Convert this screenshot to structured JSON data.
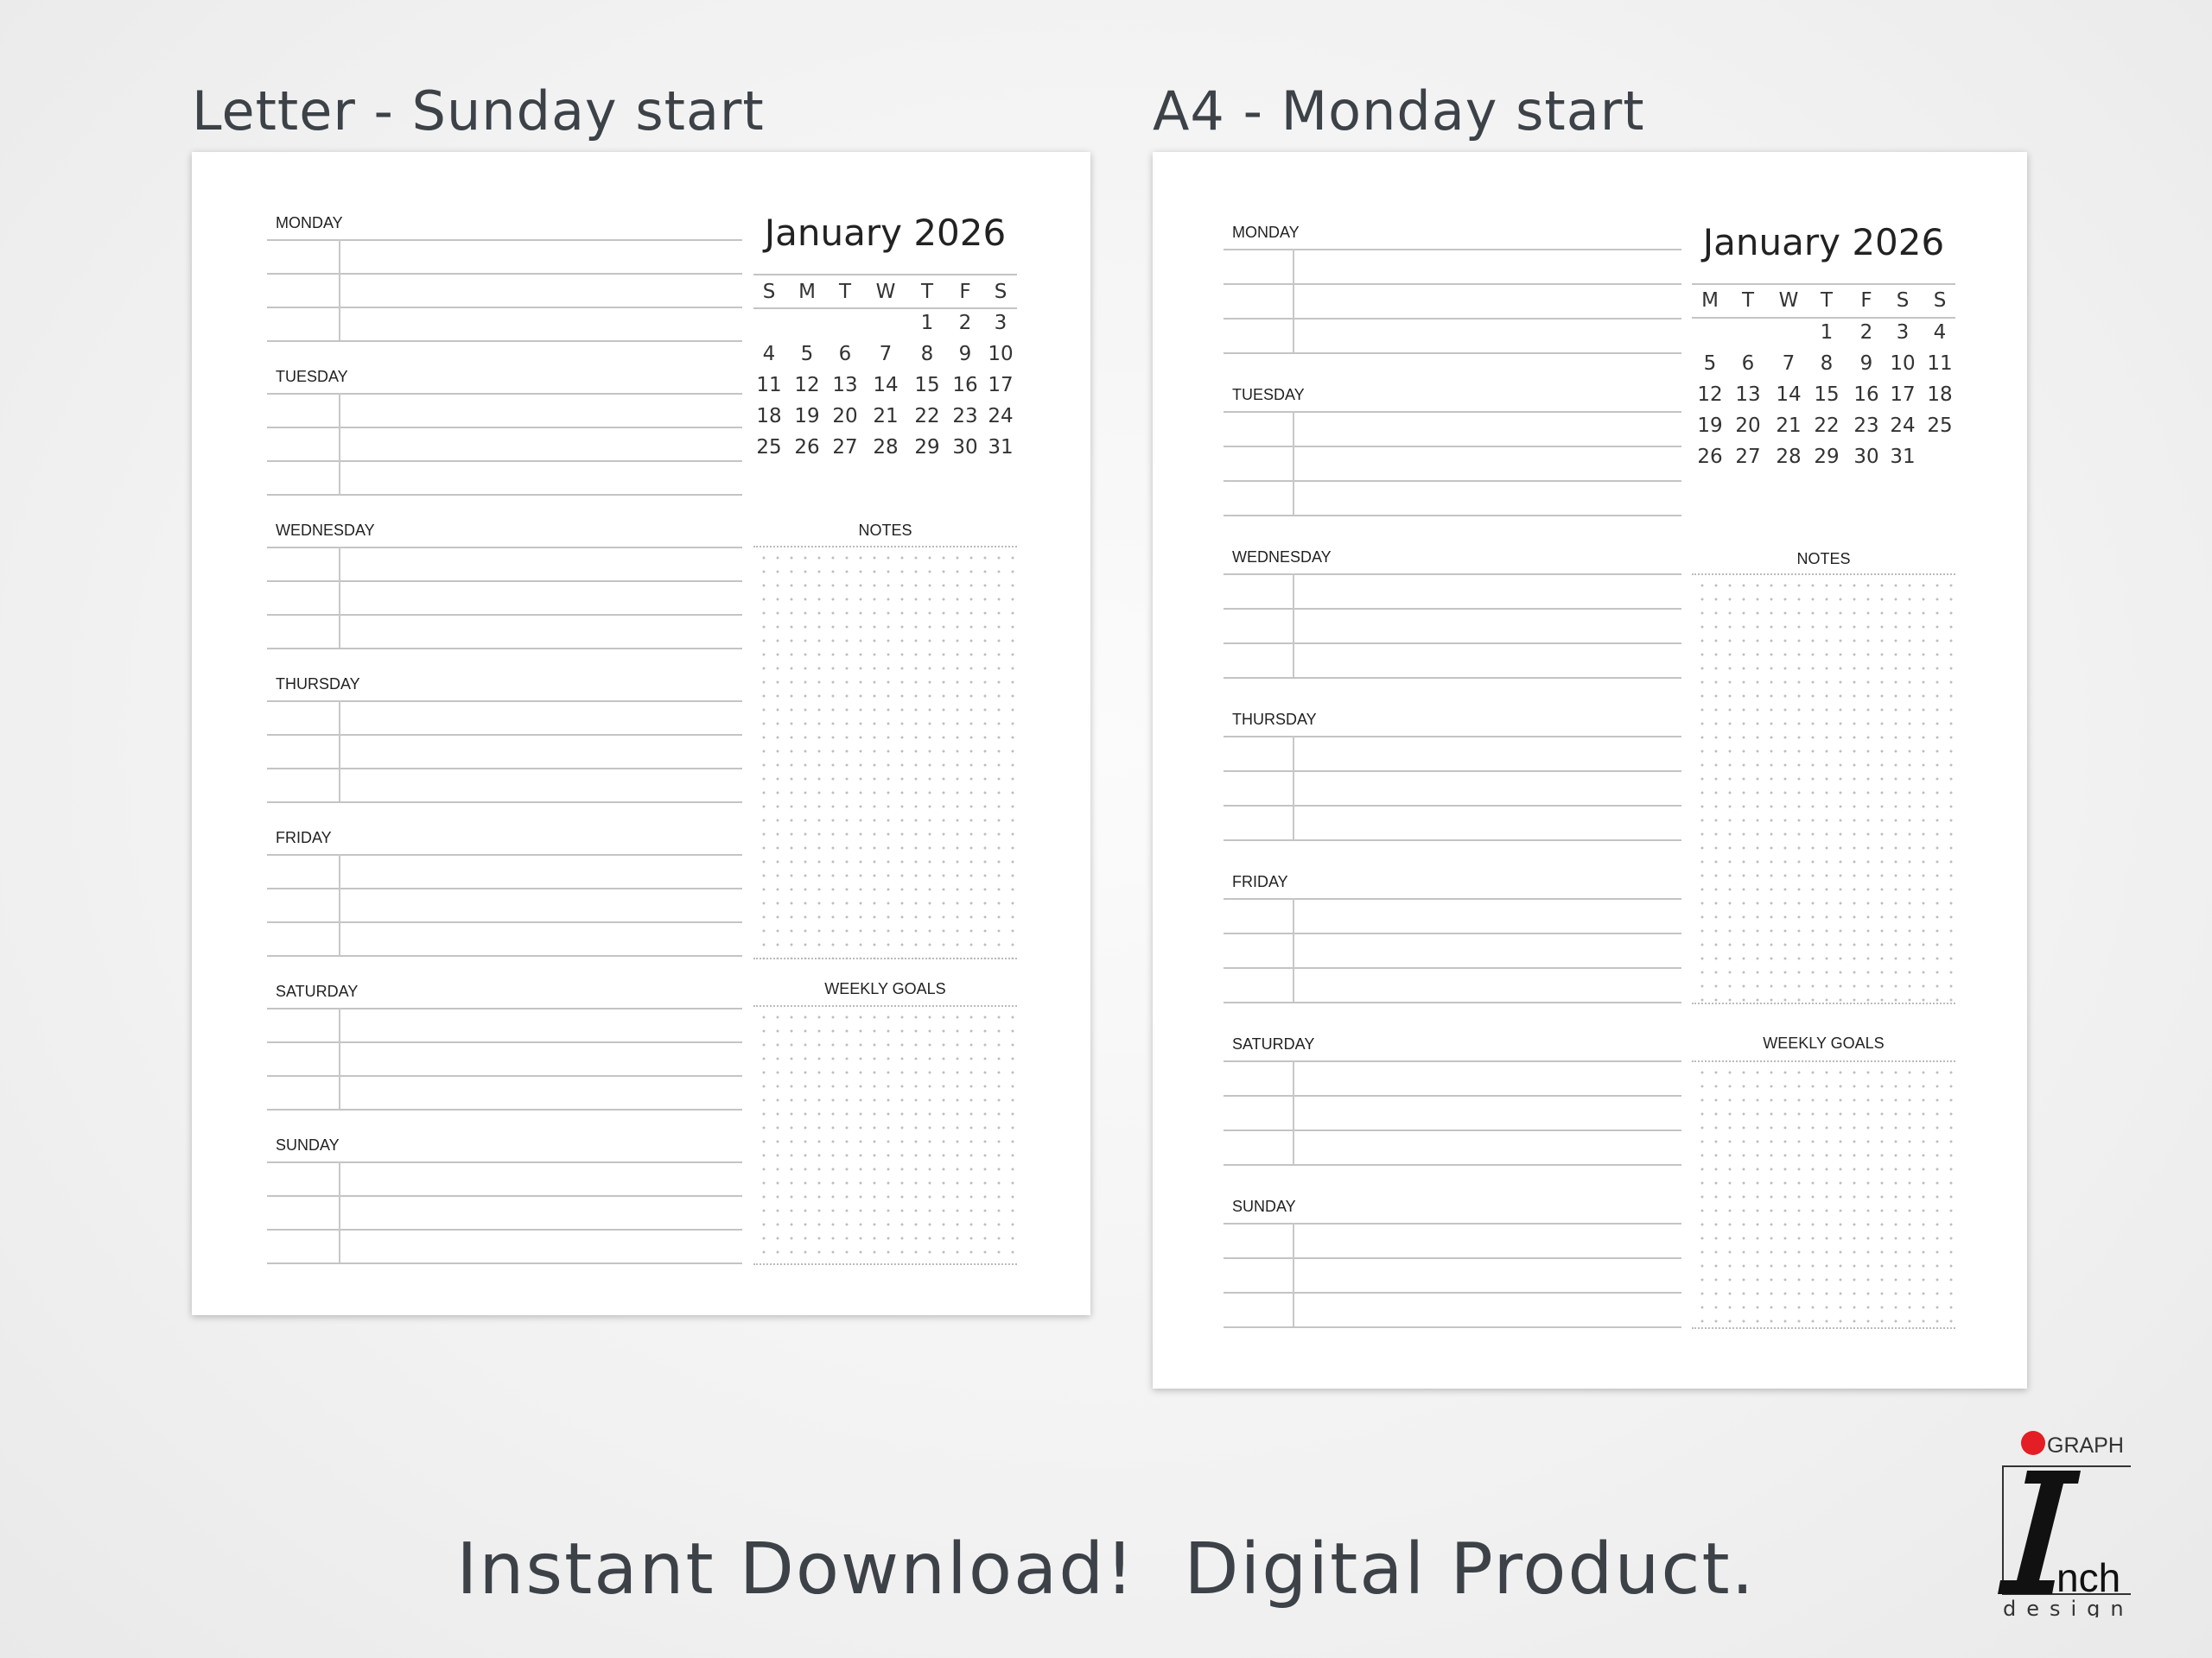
{
  "left": {
    "heading": "Letter - Sunday start",
    "calendar": {
      "title": "January 2026",
      "weekdays": [
        "S",
        "M",
        "T",
        "W",
        "T",
        "F",
        "S"
      ],
      "weeks": [
        [
          "",
          "",
          "",
          "",
          "1",
          "2",
          "3"
        ],
        [
          "4",
          "5",
          "6",
          "7",
          "8",
          "9",
          "10"
        ],
        [
          "11",
          "12",
          "13",
          "14",
          "15",
          "16",
          "17"
        ],
        [
          "18",
          "19",
          "20",
          "21",
          "22",
          "23",
          "24"
        ],
        [
          "25",
          "26",
          "27",
          "28",
          "29",
          "30",
          "31"
        ]
      ]
    },
    "days": [
      "MONDAY",
      "TUESDAY",
      "WEDNESDAY",
      "THURSDAY",
      "FRIDAY",
      "SATURDAY",
      "SUNDAY"
    ],
    "notes_label": "NOTES",
    "goals_label": "WEEKLY GOALS"
  },
  "right": {
    "heading": "A4 - Monday start",
    "calendar": {
      "title": "January 2026",
      "weekdays": [
        "M",
        "T",
        "W",
        "T",
        "F",
        "S",
        "S"
      ],
      "weeks": [
        [
          "",
          "",
          "",
          "1",
          "2",
          "3",
          "4"
        ],
        [
          "5",
          "6",
          "7",
          "8",
          "9",
          "10",
          "11"
        ],
        [
          "12",
          "13",
          "14",
          "15",
          "16",
          "17",
          "18"
        ],
        [
          "19",
          "20",
          "21",
          "22",
          "23",
          "24",
          "25"
        ],
        [
          "26",
          "27",
          "28",
          "29",
          "30",
          "31",
          ""
        ]
      ]
    },
    "days": [
      "MONDAY",
      "TUESDAY",
      "WEDNESDAY",
      "THURSDAY",
      "FRIDAY",
      "SATURDAY",
      "SUNDAY"
    ],
    "notes_label": "NOTES",
    "goals_label": "WEEKLY GOALS"
  },
  "footer": "Instant Download!  Digital Product.",
  "logo": {
    "top": "GRAPH",
    "letter": "I",
    "word": "nch",
    "bottom": "design",
    "dot_color": "#e31e24"
  }
}
